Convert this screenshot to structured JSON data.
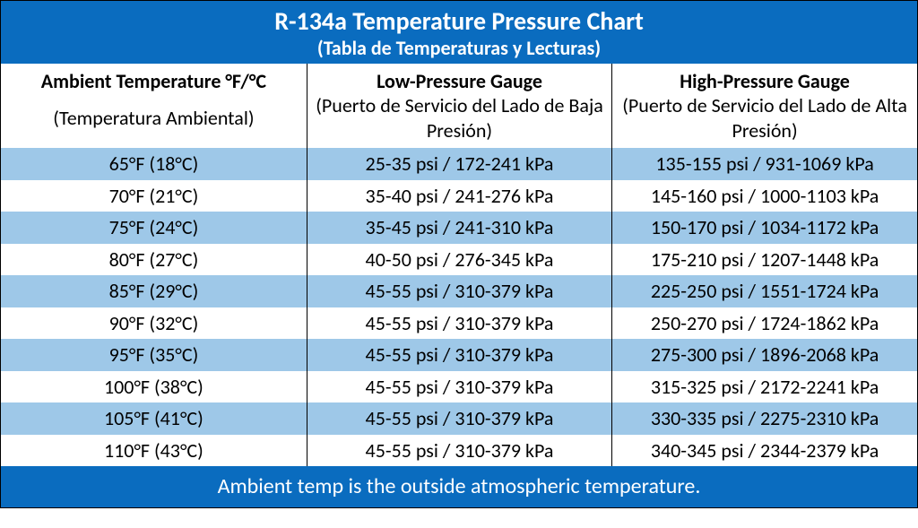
{
  "colors": {
    "header_bg": "#0a6cbf",
    "header_text": "#ffffff",
    "stripe_odd": "#9ec8e8",
    "stripe_even": "#ffffff",
    "footer_bg": "#0a6cbf",
    "footer_text": "#ffffff",
    "border": "#000000"
  },
  "title": {
    "main": "R-134a Temperature Pressure Chart",
    "sub": "(Tabla de Temperaturas y Lecturas)"
  },
  "columns": [
    {
      "en": "Ambient Temperature °F/°C",
      "es": "(Temperatura Ambiental)"
    },
    {
      "en": "Low-Pressure Gauge",
      "es": "(Puerto de Servicio del Lado de Baja Presión)"
    },
    {
      "en": "High-Pressure Gauge",
      "es": "(Puerto de Servicio del Lado de Alta Presión)"
    }
  ],
  "rows": [
    {
      "temp": "65°F (18°C)",
      "low": "25-35 psi / 172-241 kPa",
      "high": "135-155 psi / 931-1069 kPa"
    },
    {
      "temp": "70°F (21°C)",
      "low": "35-40 psi / 241-276 kPa",
      "high": "145-160 psi / 1000-1103 kPa"
    },
    {
      "temp": "75°F (24°C)",
      "low": "35-45 psi / 241-310 kPa",
      "high": "150-170 psi / 1034-1172 kPa"
    },
    {
      "temp": "80°F (27°C)",
      "low": "40-50 psi / 276-345 kPa",
      "high": "175-210 psi / 1207-1448 kPa"
    },
    {
      "temp": "85°F (29°C)",
      "low": "45-55 psi / 310-379 kPa",
      "high": "225-250 psi / 1551-1724 kPa"
    },
    {
      "temp": "90°F (32°C)",
      "low": "45-55 psi / 310-379 kPa",
      "high": "250-270 psi / 1724-1862 kPa"
    },
    {
      "temp": "95°F (35°C)",
      "low": "45-55 psi / 310-379 kPa",
      "high": "275-300 psi / 1896-2068 kPa"
    },
    {
      "temp": "100°F (38°C)",
      "low": "45-55 psi / 310-379 kPa",
      "high": "315-325 psi / 2172-2241 kPa"
    },
    {
      "temp": "105°F (41°C)",
      "low": "45-55 psi / 310-379 kPa",
      "high": "330-335 psi / 2275-2310 kPa"
    },
    {
      "temp": "110°F (43°C)",
      "low": "45-55 psi / 310-379 kPa",
      "high": "340-345 psi / 2344-2379 kPa"
    }
  ],
  "footer": "Ambient temp is the outside atmospheric temperature."
}
